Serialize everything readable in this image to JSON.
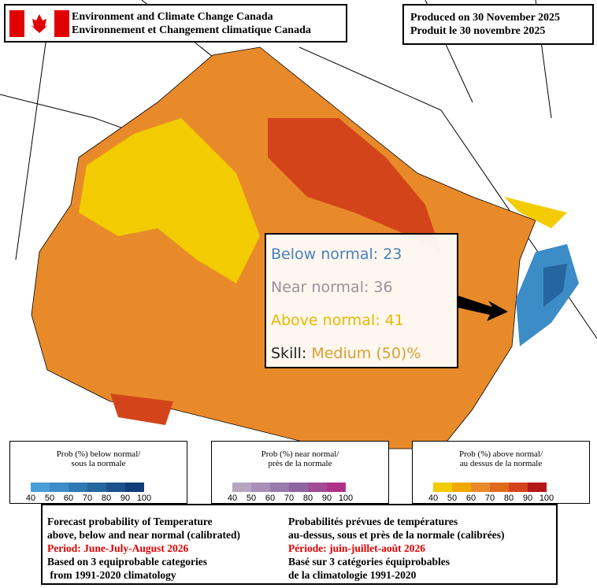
{
  "header": {
    "org_en": "Environment and Climate Change Canada",
    "org_fr": "Environnement et Changement climatique Canada",
    "produced_en": "Produced on 30 November 2025",
    "produced_fr": "Produit le 30 novembre 2025"
  },
  "tooltip": {
    "below": {
      "label": "Below normal:",
      "value": 23
    },
    "near": {
      "label": "Near normal:",
      "value": 36
    },
    "above": {
      "label": "Above normal:",
      "value": 41
    },
    "skill": {
      "label": "Skill:",
      "value": "Medium (50)%"
    }
  },
  "legends": [
    {
      "line1": "Prob (%) below normal/",
      "line2": "sous la normale",
      "ticks": [
        40,
        50,
        60,
        70,
        80,
        90,
        100
      ],
      "colors": [
        "#4a9fd8",
        "#3c8cc8",
        "#2f78b4",
        "#2565a0",
        "#1b528c",
        "#123e78"
      ]
    },
    {
      "line1": "Prob (%) near normal/",
      "line2": "près de la normale",
      "ticks": [
        40,
        50,
        60,
        70,
        80,
        90,
        100
      ],
      "colors": [
        "#b7a5c0",
        "#a88fb6",
        "#9a7aac",
        "#8f64a0",
        "#a04c94",
        "#b03288"
      ]
    },
    {
      "line1": "Prob (%) above normal/",
      "line2": "au dessus de la normale",
      "ticks": [
        40,
        50,
        60,
        70,
        80,
        90,
        100
      ],
      "colors": [
        "#f2cc00",
        "#f0a800",
        "#e88a2a",
        "#e06a1c",
        "#d4441a",
        "#b41818"
      ]
    }
  ],
  "footer": {
    "en": [
      "Forecast probability of Temperature",
      "above, below and near normal (calibrated)",
      "Period: June-July-August 2026",
      "Based on 3 equiprobable categories",
      " from 1991-2020 climatology"
    ],
    "fr": [
      "Probabilités prévues de températures",
      "au-dessus, sous et près de la normale (calibrées)",
      "Période: juin-juillet-août 2026",
      "Basé sur 3 catégories équiprobables",
      "de la climatologie 1991-2020"
    ]
  }
}
